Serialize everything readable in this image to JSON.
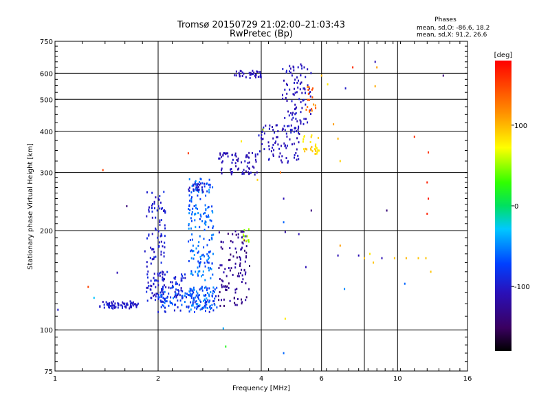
{
  "chart_data": {
    "type": "scatter",
    "title_line1": "Tromsø 20150729 21:02:00–21:03:43",
    "title_line2": "RwPretec (Bp)",
    "stats": {
      "heading": "Phases",
      "line_o": "mean, sd,O: -86.6, 18.2",
      "line_x": "mean, sd,X:  91.2, 26.6"
    },
    "xlabel": "Frequency [MHz]",
    "ylabel": "Stationary phase Virtual Height [km]",
    "x_scale": "log",
    "y_scale": "log",
    "xlim": [
      1,
      16
    ],
    "ylim": [
      75,
      750
    ],
    "x_ticks": [
      {
        "value": 1,
        "label": "1"
      },
      {
        "value": 2,
        "label": "2"
      },
      {
        "value": 4,
        "label": "4"
      },
      {
        "value": 6,
        "label": "6"
      },
      {
        "value": 10,
        "label": "10"
      },
      {
        "value": 16,
        "label": "16"
      }
    ],
    "x_grid": [
      2,
      4,
      6,
      8,
      10
    ],
    "y_ticks": [
      {
        "value": 75,
        "label": "75"
      },
      {
        "value": 100,
        "label": "100"
      },
      {
        "value": 200,
        "label": "200"
      },
      {
        "value": 300,
        "label": "300"
      },
      {
        "value": 400,
        "label": "400"
      },
      {
        "value": 500,
        "label": "500"
      },
      {
        "value": 600,
        "label": "600"
      },
      {
        "value": 750,
        "label": "750"
      }
    ],
    "y_grid": [
      100,
      200,
      300,
      400,
      500,
      600
    ],
    "grid": true,
    "colorbar": {
      "label": "[deg]",
      "range": [
        -180,
        180
      ],
      "ticks": [
        {
          "value": 100,
          "label": "100"
        },
        {
          "value": 0,
          "label": "0"
        },
        {
          "value": -100,
          "label": "-100"
        }
      ]
    },
    "clusters": [
      {
        "f": [
          1.35,
          1.75
        ],
        "h": [
          116,
          122
        ],
        "phase": [
          -110,
          -90
        ],
        "n": 70
      },
      {
        "f": [
          1.85,
          2.1
        ],
        "h": [
          120,
          270
        ],
        "phase": [
          -110,
          -85
        ],
        "n": 110
      },
      {
        "f": [
          1.9,
          2.4
        ],
        "h": [
          125,
          150
        ],
        "phase": [
          -115,
          -80
        ],
        "n": 60
      },
      {
        "f": [
          2.0,
          3.0
        ],
        "h": [
          113,
          135
        ],
        "phase": [
          -100,
          -50
        ],
        "n": 130
      },
      {
        "f": [
          2.45,
          2.9
        ],
        "h": [
          115,
          290
        ],
        "phase": [
          -80,
          -40
        ],
        "n": 220
      },
      {
        "f": [
          2.45,
          2.75
        ],
        "h": [
          262,
          278
        ],
        "phase": [
          -110,
          -95
        ],
        "n": 22
      },
      {
        "f": [
          3.0,
          3.7
        ],
        "h": [
          118,
          200
        ],
        "phase": [
          -145,
          -110
        ],
        "n": 110
      },
      {
        "f": [
          3.0,
          3.9
        ],
        "h": [
          295,
          345
        ],
        "phase": [
          -120,
          -100
        ],
        "n": 70
      },
      {
        "f": [
          3.3,
          4.0
        ],
        "h": [
          580,
          610
        ],
        "phase": [
          -115,
          -100
        ],
        "n": 35
      },
      {
        "f": [
          3.9,
          5.2
        ],
        "h": [
          320,
          420
        ],
        "phase": [
          -115,
          -95
        ],
        "n": 90
      },
      {
        "f": [
          4.6,
          5.6
        ],
        "h": [
          420,
          640
        ],
        "phase": [
          -115,
          -95
        ],
        "n": 90
      },
      {
        "f": [
          5.3,
          5.9
        ],
        "h": [
          340,
          390
        ],
        "phase": [
          75,
          100
        ],
        "n": 28
      },
      {
        "f": [
          5.4,
          5.8
        ],
        "h": [
          450,
          550
        ],
        "phase": [
          110,
          150
        ],
        "n": 18
      },
      {
        "f": [
          3.5,
          3.8
        ],
        "h": [
          185,
          205
        ],
        "phase": [
          40,
          70
        ],
        "n": 10
      }
    ],
    "points": [
      {
        "f": 1.02,
        "h": 115,
        "phase": -100
      },
      {
        "f": 1.25,
        "h": 135,
        "phase": 150
      },
      {
        "f": 1.3,
        "h": 125,
        "phase": -30
      },
      {
        "f": 1.38,
        "h": 305,
        "phase": 150
      },
      {
        "f": 1.52,
        "h": 149,
        "phase": -110
      },
      {
        "f": 1.62,
        "h": 237,
        "phase": -140
      },
      {
        "f": 1.83,
        "h": 173,
        "phase": -100
      },
      {
        "f": 2.45,
        "h": 343,
        "phase": 155
      },
      {
        "f": 3.15,
        "h": 89,
        "phase": 20
      },
      {
        "f": 3.1,
        "h": 101,
        "phase": -40
      },
      {
        "f": 3.5,
        "h": 373,
        "phase": 80
      },
      {
        "f": 3.9,
        "h": 285,
        "phase": 90
      },
      {
        "f": 4.05,
        "h": 405,
        "phase": 60
      },
      {
        "f": 4.55,
        "h": 300,
        "phase": 130
      },
      {
        "f": 4.65,
        "h": 250,
        "phase": -110
      },
      {
        "f": 4.65,
        "h": 212,
        "phase": -60
      },
      {
        "f": 4.7,
        "h": 198,
        "phase": -120
      },
      {
        "f": 4.7,
        "h": 108,
        "phase": 80
      },
      {
        "f": 4.65,
        "h": 85,
        "phase": -60
      },
      {
        "f": 5.15,
        "h": 195,
        "phase": -110
      },
      {
        "f": 5.4,
        "h": 155,
        "phase": -110
      },
      {
        "f": 5.6,
        "h": 230,
        "phase": -140
      },
      {
        "f": 6.0,
        "h": 590,
        "phase": 100
      },
      {
        "f": 6.25,
        "h": 555,
        "phase": 80
      },
      {
        "f": 6.5,
        "h": 420,
        "phase": 110
      },
      {
        "f": 6.7,
        "h": 380,
        "phase": 100
      },
      {
        "f": 6.8,
        "h": 325,
        "phase": 90
      },
      {
        "f": 6.8,
        "h": 180,
        "phase": 110
      },
      {
        "f": 6.7,
        "h": 168,
        "phase": -110
      },
      {
        "f": 7.0,
        "h": 133,
        "phase": -50
      },
      {
        "f": 7.05,
        "h": 540,
        "phase": -100
      },
      {
        "f": 7.4,
        "h": 625,
        "phase": 160
      },
      {
        "f": 7.7,
        "h": 168,
        "phase": -110
      },
      {
        "f": 8.0,
        "h": 165,
        "phase": 95
      },
      {
        "f": 8.3,
        "h": 170,
        "phase": 80
      },
      {
        "f": 8.5,
        "h": 160,
        "phase": 95
      },
      {
        "f": 8.6,
        "h": 650,
        "phase": -110
      },
      {
        "f": 8.7,
        "h": 625,
        "phase": 110
      },
      {
        "f": 8.6,
        "h": 548,
        "phase": 105
      },
      {
        "f": 9.0,
        "h": 165,
        "phase": -110
      },
      {
        "f": 9.3,
        "h": 230,
        "phase": -140
      },
      {
        "f": 9.8,
        "h": 165,
        "phase": 95
      },
      {
        "f": 10.5,
        "h": 138,
        "phase": -60
      },
      {
        "f": 10.6,
        "h": 165,
        "phase": 100
      },
      {
        "f": 11.2,
        "h": 385,
        "phase": 160
      },
      {
        "f": 11.5,
        "h": 165,
        "phase": 95
      },
      {
        "f": 12.3,
        "h": 345,
        "phase": 160
      },
      {
        "f": 12.2,
        "h": 280,
        "phase": 165
      },
      {
        "f": 12.3,
        "h": 250,
        "phase": 170
      },
      {
        "f": 12.2,
        "h": 225,
        "phase": 165
      },
      {
        "f": 12.1,
        "h": 165,
        "phase": 95
      },
      {
        "f": 12.5,
        "h": 150,
        "phase": 95
      },
      {
        "f": 13.6,
        "h": 590,
        "phase": -140
      }
    ]
  }
}
